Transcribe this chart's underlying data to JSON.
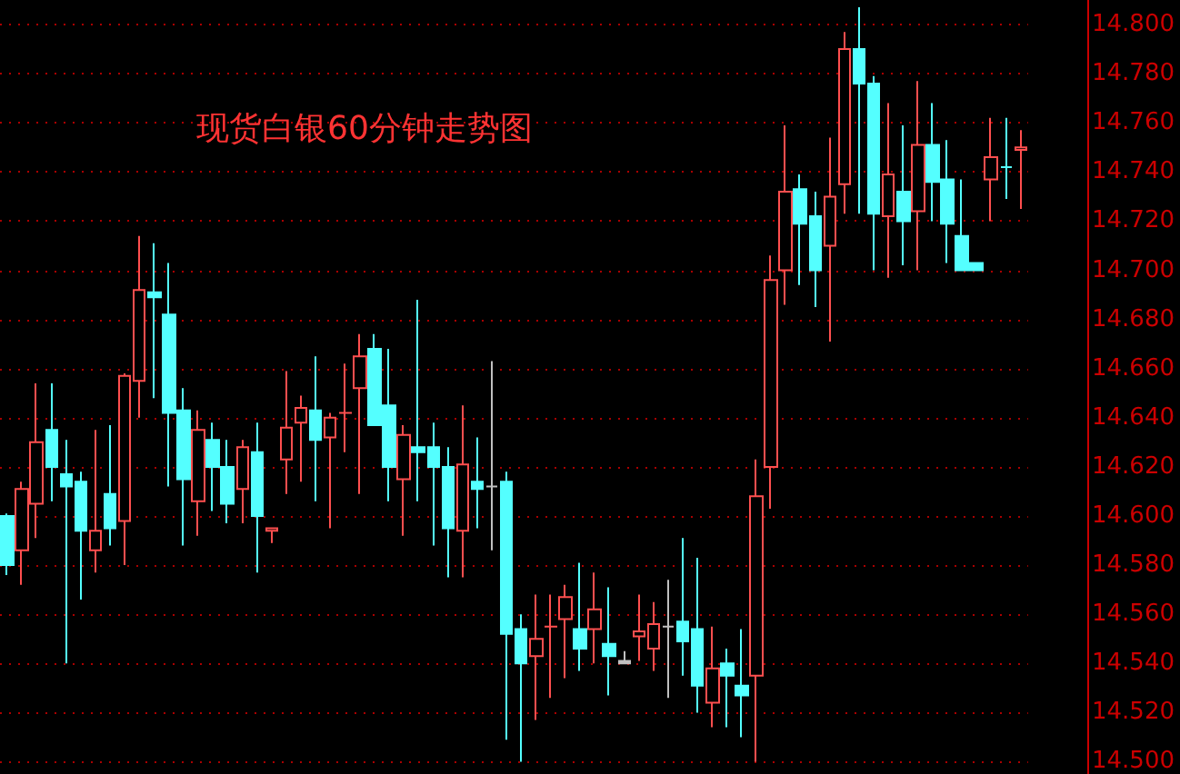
{
  "chart_data": {
    "type": "candlestick",
    "title": "现货白银60分钟走势图",
    "categories": [
      null,
      null,
      null,
      null,
      null,
      null,
      null,
      null,
      null,
      null,
      null,
      null,
      null,
      null,
      null,
      null,
      null,
      null,
      null,
      null,
      null,
      null,
      null,
      null,
      null,
      null,
      null,
      null,
      null,
      null,
      null,
      null,
      null,
      null,
      null,
      null,
      null,
      null,
      null,
      null,
      null,
      null,
      null,
      null,
      null,
      null,
      null,
      null,
      null,
      null,
      null,
      null,
      null,
      null,
      null,
      null,
      null,
      null,
      null,
      null,
      null,
      null,
      null,
      null,
      null,
      null,
      null,
      null,
      null,
      null
    ],
    "ohlc": [
      [
        14.6,
        14.601,
        14.576,
        14.58
      ],
      [
        14.586,
        14.614,
        14.572,
        14.611
      ],
      [
        14.605,
        14.654,
        14.591,
        14.63
      ],
      [
        14.635,
        14.654,
        14.606,
        14.62
      ],
      [
        14.617,
        14.631,
        14.54,
        14.612
      ],
      [
        14.614,
        14.618,
        14.566,
        14.594
      ],
      [
        14.586,
        14.635,
        14.577,
        14.594
      ],
      [
        14.609,
        14.637,
        14.588,
        14.595
      ],
      [
        14.598,
        14.658,
        14.58,
        14.657
      ],
      [
        14.655,
        14.714,
        14.64,
        14.692
      ],
      [
        14.691,
        14.711,
        14.648,
        14.689
      ],
      [
        14.682,
        14.703,
        14.612,
        14.642
      ],
      [
        14.643,
        14.652,
        14.588,
        14.615
      ],
      [
        14.606,
        14.643,
        14.592,
        14.635
      ],
      [
        14.631,
        14.638,
        14.602,
        14.62
      ],
      [
        14.62,
        14.631,
        14.597,
        14.605
      ],
      [
        14.611,
        14.631,
        14.597,
        14.628
      ],
      [
        14.626,
        14.638,
        14.577,
        14.6
      ],
      [
        14.594,
        14.595,
        14.589,
        14.595
      ],
      [
        14.623,
        14.659,
        14.609,
        14.636
      ],
      [
        14.638,
        14.649,
        14.614,
        14.644
      ],
      [
        14.643,
        14.665,
        14.606,
        14.631
      ],
      [
        14.632,
        14.642,
        14.595,
        14.64
      ],
      [
        14.642,
        14.662,
        14.626,
        14.642
      ],
      [
        14.652,
        14.674,
        14.609,
        14.665
      ],
      [
        14.668,
        14.674,
        14.637,
        14.637
      ],
      [
        14.645,
        14.668,
        14.606,
        14.62
      ],
      [
        14.615,
        14.637,
        14.592,
        14.633
      ],
      [
        14.628,
        14.688,
        14.606,
        14.626
      ],
      [
        14.628,
        14.638,
        14.588,
        14.62
      ],
      [
        14.62,
        14.628,
        14.575,
        14.595
      ],
      [
        14.594,
        14.645,
        14.575,
        14.621
      ],
      [
        14.614,
        14.632,
        14.595,
        14.611
      ],
      [
        14.612,
        14.663,
        14.586,
        14.612
      ],
      [
        14.614,
        14.618,
        14.509,
        14.552
      ],
      [
        14.554,
        14.56,
        14.5,
        14.54
      ],
      [
        14.543,
        14.568,
        14.517,
        14.55
      ],
      [
        14.555,
        14.568,
        14.526,
        14.555
      ],
      [
        14.558,
        14.572,
        14.534,
        14.567
      ],
      [
        14.554,
        14.581,
        14.537,
        14.546
      ],
      [
        14.554,
        14.577,
        14.54,
        14.562
      ],
      [
        14.548,
        14.571,
        14.527,
        14.543
      ],
      [
        14.541,
        14.545,
        14.54,
        14.54
      ],
      [
        14.551,
        14.568,
        14.541,
        14.553
      ],
      [
        14.546,
        14.565,
        14.537,
        14.556
      ],
      [
        14.555,
        14.574,
        14.526,
        14.555
      ],
      [
        14.557,
        14.591,
        14.535,
        14.549
      ],
      [
        14.554,
        14.583,
        14.52,
        14.531
      ],
      [
        14.524,
        14.555,
        14.514,
        14.538
      ],
      [
        14.54,
        14.546,
        14.514,
        14.535
      ],
      [
        14.531,
        14.554,
        14.51,
        14.527
      ],
      [
        14.535,
        14.623,
        14.5,
        14.608
      ],
      [
        14.62,
        14.706,
        14.603,
        14.696
      ],
      [
        14.7,
        14.759,
        14.686,
        14.732
      ],
      [
        14.733,
        14.739,
        14.694,
        14.719
      ],
      [
        14.722,
        14.732,
        14.685,
        14.7
      ],
      [
        14.71,
        14.754,
        14.671,
        14.73
      ],
      [
        14.735,
        14.797,
        14.723,
        14.79
      ],
      [
        14.79,
        14.807,
        14.723,
        14.776
      ],
      [
        14.776,
        14.779,
        14.7,
        14.723
      ],
      [
        14.722,
        14.768,
        14.697,
        14.739
      ],
      [
        14.732,
        14.759,
        14.702,
        14.72
      ],
      [
        14.724,
        14.777,
        14.7,
        14.751
      ],
      [
        14.751,
        14.768,
        14.72,
        14.736
      ],
      [
        14.737,
        14.753,
        14.703,
        14.719
      ],
      [
        14.714,
        14.737,
        14.7,
        14.7
      ],
      [
        14.703,
        14.703,
        14.7,
        14.7
      ],
      [
        14.737,
        14.762,
        14.72,
        14.746
      ],
      [
        14.742,
        14.762,
        14.729,
        14.742
      ],
      [
        14.749,
        14.757,
        14.725,
        14.75
      ]
    ],
    "colors": [
      "#54ffff",
      "#ff4f4f",
      "#ff4f4f",
      "#54ffff",
      "#54ffff",
      "#54ffff",
      "#ff4f4f",
      "#54ffff",
      "#ff4f4f",
      "#ff4f4f",
      "#54ffff",
      "#54ffff",
      "#54ffff",
      "#ff4f4f",
      "#54ffff",
      "#54ffff",
      "#ff4f4f",
      "#54ffff",
      "#ff4f4f",
      "#ff4f4f",
      "#ff4f4f",
      "#54ffff",
      "#ff4f4f",
      "#ff4f4f",
      "#ff4f4f",
      "#54ffff",
      "#54ffff",
      "#ff4f4f",
      "#54ffff",
      "#54ffff",
      "#54ffff",
      "#ff4f4f",
      "#54ffff",
      "#c0c0c0",
      "#54ffff",
      "#54ffff",
      "#ff4f4f",
      "#ff4f4f",
      "#ff4f4f",
      "#54ffff",
      "#ff4f4f",
      "#54ffff",
      "#c0c0c0",
      "#ff4f4f",
      "#ff4f4f",
      "#c0c0c0",
      "#54ffff",
      "#54ffff",
      "#ff4f4f",
      "#54ffff",
      "#54ffff",
      "#ff4f4f",
      "#ff4f4f",
      "#ff4f4f",
      "#54ffff",
      "#54ffff",
      "#ff4f4f",
      "#ff4f4f",
      "#54ffff",
      "#54ffff",
      "#ff4f4f",
      "#54ffff",
      "#ff4f4f",
      "#54ffff",
      "#54ffff",
      "#54ffff",
      "#54ffff",
      "#ff4f4f",
      "#54ffff",
      "#ff4f4f"
    ],
    "ylim": [
      14.495,
      14.81
    ],
    "yticks": [
      {
        "value": 14.5,
        "label": "14.500"
      },
      {
        "value": 14.52,
        "label": "14.520"
      },
      {
        "value": 14.54,
        "label": "14.540"
      },
      {
        "value": 14.56,
        "label": "14.560"
      },
      {
        "value": 14.58,
        "label": "14.580"
      },
      {
        "value": 14.6,
        "label": "14.600"
      },
      {
        "value": 14.62,
        "label": "14.620"
      },
      {
        "value": 14.64,
        "label": "14.640"
      },
      {
        "value": 14.66,
        "label": "14.660"
      },
      {
        "value": 14.68,
        "label": "14.680"
      },
      {
        "value": 14.7,
        "label": "14.700"
      },
      {
        "value": 14.72,
        "label": "14.720"
      },
      {
        "value": 14.74,
        "label": "14.740"
      },
      {
        "value": 14.76,
        "label": "14.760"
      },
      {
        "value": 14.78,
        "label": "14.780"
      },
      {
        "value": 14.8,
        "label": "14.800"
      }
    ],
    "grid": "y",
    "tick_labels": "y"
  }
}
